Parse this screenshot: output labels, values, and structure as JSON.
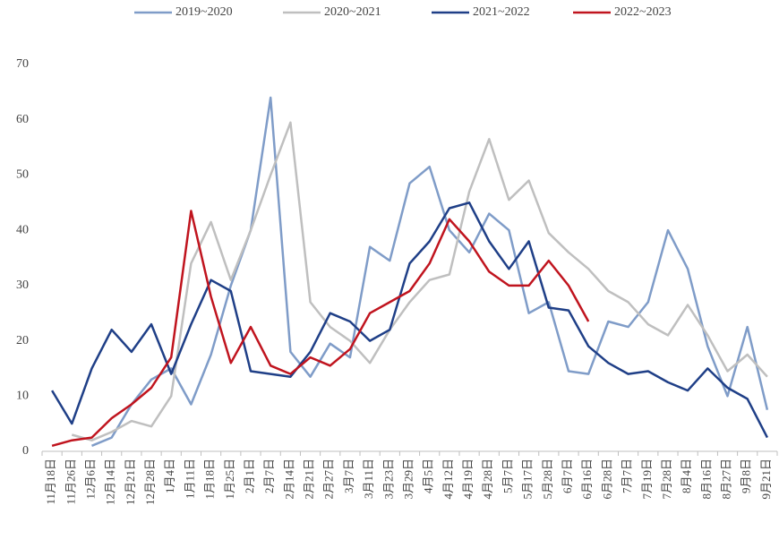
{
  "chart_data": {
    "type": "line",
    "categories": [
      "11月18日",
      "11月26日",
      "12月6日",
      "12月14日",
      "12月21日",
      "12月28日",
      "1月4日",
      "1月11日",
      "1月18日",
      "1月25日",
      "2月1日",
      "2月7日",
      "2月14日",
      "2月21日",
      "2月27日",
      "3月7日",
      "3月11日",
      "3月23日",
      "3月29日",
      "4月5日",
      "4月12日",
      "4月19日",
      "4月28日",
      "5月7日",
      "5月17日",
      "5月28日",
      "6月7日",
      "6月16日",
      "6月28日",
      "7月7日",
      "7月19日",
      "7月28日",
      "8月4日",
      "8月16日",
      "8月27日",
      "9月8日",
      "9月21日"
    ],
    "series": [
      {
        "name": "2019~2020",
        "color": "#7f9cc8",
        "values": [
          null,
          null,
          1,
          2.5,
          8.5,
          13,
          15,
          8.5,
          17.5,
          30,
          40,
          64,
          18,
          13.5,
          19.5,
          17,
          37,
          34.5,
          48.5,
          51.5,
          40,
          36,
          43,
          40,
          25,
          27,
          14.5,
          14,
          23.5,
          22.5,
          27,
          40,
          33,
          19,
          10,
          22.5,
          7.5
        ]
      },
      {
        "name": "2020~2021",
        "color": "#bfbfbf",
        "values": [
          null,
          3,
          2,
          3.5,
          5.5,
          4.5,
          10,
          34,
          41.5,
          31,
          40,
          50,
          59.5,
          27,
          22.5,
          20,
          16,
          22,
          27,
          31,
          32,
          47,
          56.5,
          45.5,
          49,
          39.5,
          36,
          33,
          29,
          27,
          23,
          21,
          26.5,
          21,
          14.5,
          17.5,
          13.5
        ]
      },
      {
        "name": "2021~2022",
        "color": "#1f3f87",
        "values": [
          11,
          5,
          15,
          22,
          18,
          23,
          14,
          23,
          31,
          29,
          14.5,
          14,
          13.5,
          18,
          25,
          23.5,
          20,
          22,
          34,
          38,
          44,
          45,
          38,
          33,
          38,
          26,
          25.5,
          19,
          16,
          14,
          14.5,
          12.5,
          11,
          15,
          11.5,
          9.5,
          2.5
        ]
      },
      {
        "name": "2022~2023",
        "color": "#c0141e",
        "values": [
          1,
          2,
          2.5,
          6,
          8.5,
          11.5,
          17,
          43.5,
          28,
          16,
          22.5,
          15.5,
          14,
          17,
          15.5,
          18.5,
          25,
          27,
          29,
          34,
          42,
          38,
          32.5,
          30,
          30,
          34.5,
          30,
          23.5,
          null,
          null,
          null,
          null,
          null,
          null,
          null,
          null,
          null
        ]
      }
    ],
    "ylim": [
      0,
      70
    ],
    "yticks": [
      0,
      10,
      20,
      30,
      40,
      50,
      60,
      70
    ],
    "grid": false
  }
}
